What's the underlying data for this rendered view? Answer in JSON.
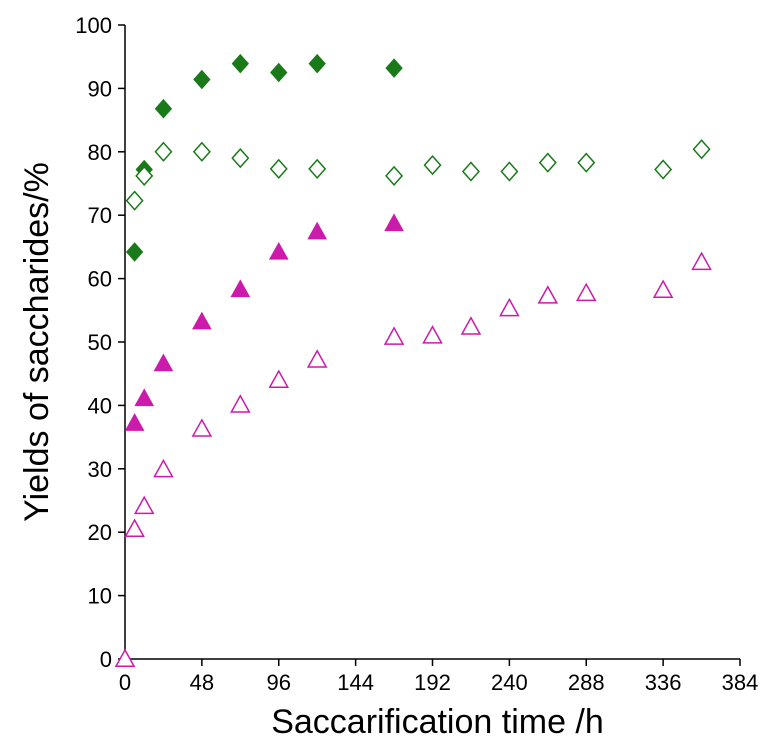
{
  "chart_data": {
    "type": "scatter",
    "title": "",
    "xlabel": "Saccarification  time /h",
    "ylabel": "Yields of saccharides/%",
    "xlim": [
      0,
      384
    ],
    "ylim": [
      0,
      100
    ],
    "xticks": [
      0,
      48,
      96,
      144,
      192,
      240,
      288,
      336,
      384
    ],
    "yticks": [
      0,
      10,
      20,
      30,
      40,
      50,
      60,
      70,
      80,
      90,
      100
    ],
    "grid": false,
    "legend": "none",
    "series": [
      {
        "marker": "diamond",
        "filled": true,
        "color": "#1a7a1a",
        "x": [
          6,
          12,
          24,
          48,
          72,
          96,
          120,
          168
        ],
        "y": [
          64.2,
          77.2,
          86.8,
          91.4,
          93.9,
          92.5,
          93.9,
          93.2
        ]
      },
      {
        "marker": "diamond",
        "filled": false,
        "color": "#1a7a1a",
        "x": [
          6,
          12,
          24,
          48,
          72,
          96,
          120,
          168,
          192,
          216,
          240,
          264,
          288,
          336,
          360
        ],
        "y": [
          72.3,
          76.2,
          80.0,
          80.0,
          79.0,
          77.3,
          77.3,
          76.2,
          77.9,
          76.9,
          76.9,
          78.3,
          78.3,
          77.2,
          80.4
        ]
      },
      {
        "marker": "triangle",
        "filled": true,
        "color": "#cc1aaa",
        "x": [
          0,
          6,
          12,
          24,
          48,
          72,
          96,
          120,
          168
        ],
        "y": [
          0,
          37.2,
          41.1,
          46.6,
          53.2,
          58.3,
          64.2,
          67.4,
          68.7
        ]
      },
      {
        "marker": "triangle",
        "filled": false,
        "color": "#cc1aaa",
        "x": [
          0,
          6,
          12,
          24,
          48,
          72,
          96,
          120,
          168,
          192,
          216,
          240,
          264,
          288,
          336,
          360
        ],
        "y": [
          0,
          20.5,
          24.1,
          29.9,
          36.3,
          40.1,
          44.0,
          47.2,
          50.8,
          51.0,
          52.4,
          55.3,
          57.3,
          57.7,
          58.2,
          62.6
        ]
      }
    ]
  }
}
